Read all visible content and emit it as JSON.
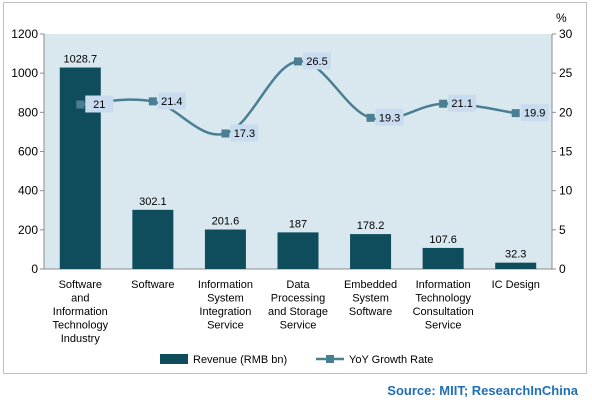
{
  "chart_data": {
    "type": "bar+line",
    "categories": [
      "Software and Information Technology Industry",
      "Software",
      "Information System Integration Service",
      "Data Processing and Storage Service",
      "Embedded System Software",
      "Information Technology Consultation Service",
      "IC Design"
    ],
    "category_lines": [
      [
        "Software",
        "and",
        "Information",
        "Technology",
        "Industry"
      ],
      [
        "Software"
      ],
      [
        "Information",
        "System",
        "Integration",
        "Service"
      ],
      [
        "Data",
        "Processing",
        "and Storage",
        "Service"
      ],
      [
        "Embedded",
        "System",
        "Software"
      ],
      [
        "Information",
        "Technology",
        "Consultation",
        "Service"
      ],
      [
        "IC Design"
      ]
    ],
    "series": [
      {
        "name": "Revenue (RMB bn)",
        "type": "bar",
        "axis": "left",
        "color": "#0f4c5c",
        "values": [
          1028.7,
          302.1,
          201.6,
          187,
          178.2,
          107.6,
          32.3
        ],
        "labels": [
          "1028.7",
          "302.1",
          "201.6",
          "187",
          "178.2",
          "107.6",
          "32.3"
        ]
      },
      {
        "name": "YoY Growth Rate",
        "type": "line",
        "axis": "right",
        "color": "#4a7f93",
        "values": [
          21,
          21.4,
          17.3,
          26.5,
          19.3,
          21.1,
          19.9
        ],
        "labels": [
          "21",
          "21.4",
          "17.3",
          "26.5",
          "19.3",
          "21.1",
          "19.9"
        ]
      }
    ],
    "y_left": {
      "min": 0,
      "max": 1200,
      "ticks": [
        0,
        200,
        400,
        600,
        800,
        1000,
        1200
      ]
    },
    "y_right": {
      "min": 0,
      "max": 30,
      "ticks": [
        0,
        5,
        10,
        15,
        20,
        25,
        30
      ],
      "unit": "%"
    },
    "plot_background": "#d9e7ef",
    "label_box_color": "#c9dcef",
    "legend_position": "bottom"
  },
  "source": "Source: MIIT; ResearchInChina"
}
